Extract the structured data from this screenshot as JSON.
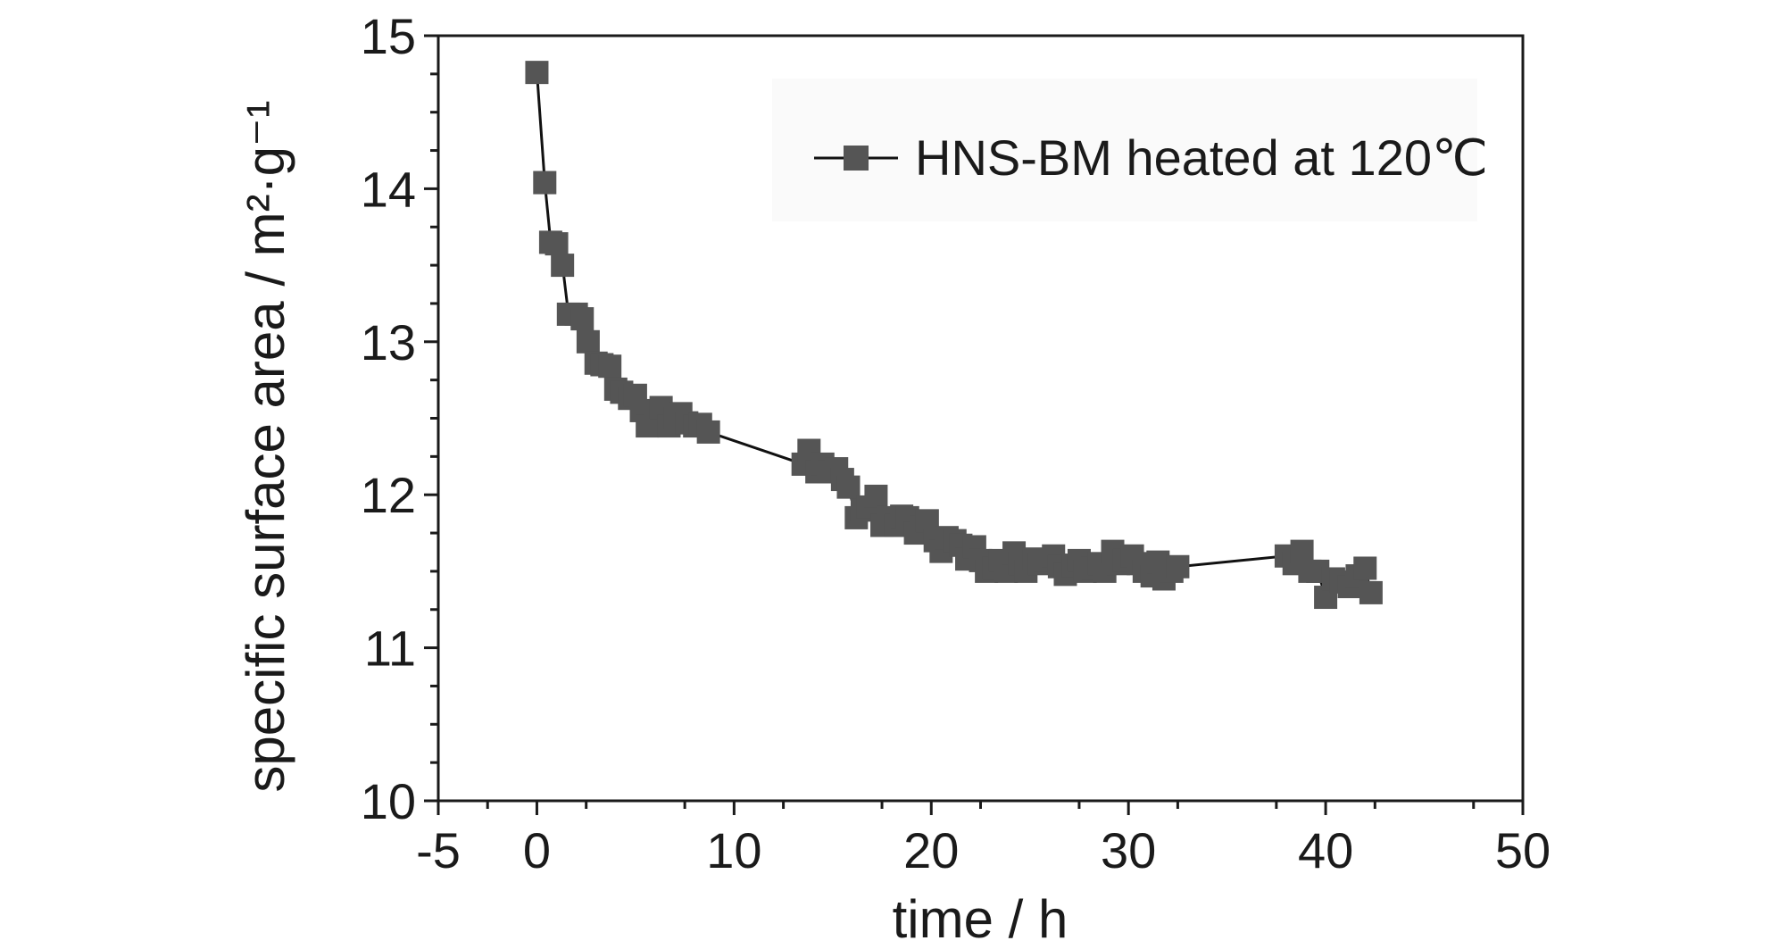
{
  "chart_data": {
    "type": "line",
    "title": "",
    "xlabel": "time / h",
    "ylabel": "specific surface area / m²·g⁻¹",
    "xlim": [
      -5,
      50
    ],
    "ylim": [
      10,
      15
    ],
    "x_ticks": [
      -5,
      0,
      10,
      20,
      30,
      40,
      50
    ],
    "x_tick_labels": [
      "-5",
      "0",
      "10",
      "20",
      "30",
      "40",
      "50"
    ],
    "y_ticks": [
      10,
      11,
      12,
      13,
      14,
      15
    ],
    "y_tick_labels": [
      "10",
      "11",
      "12",
      "13",
      "14",
      "15"
    ],
    "grid": false,
    "legend_position": "top-right",
    "marker": "square",
    "series_color": "#555555",
    "line_color": "#111111",
    "series": [
      {
        "name": "HNS-BM heated at 120℃",
        "x": [
          0.0,
          0.4,
          0.7,
          1.0,
          1.3,
          1.6,
          2.0,
          2.3,
          2.6,
          3.0,
          3.3,
          3.7,
          4.0,
          4.3,
          4.7,
          5.0,
          5.3,
          5.6,
          6.0,
          6.3,
          6.7,
          7.0,
          7.3,
          7.6,
          8.0,
          8.3,
          8.7,
          13.5,
          13.8,
          14.2,
          14.5,
          14.8,
          15.2,
          15.5,
          15.8,
          16.2,
          16.5,
          16.8,
          17.2,
          17.5,
          17.8,
          18.2,
          18.5,
          18.8,
          19.2,
          19.5,
          19.8,
          20.2,
          20.5,
          20.8,
          21.2,
          21.5,
          21.8,
          22.2,
          22.5,
          22.8,
          23.2,
          23.5,
          23.8,
          24.2,
          24.5,
          24.8,
          25.2,
          25.5,
          25.8,
          26.2,
          26.5,
          26.8,
          27.2,
          27.5,
          27.8,
          28.2,
          28.5,
          28.8,
          29.2,
          29.5,
          29.8,
          30.2,
          30.5,
          30.8,
          31.2,
          31.5,
          31.8,
          32.2,
          32.5,
          38.0,
          38.4,
          38.8,
          39.2,
          39.6,
          40.0,
          40.4,
          40.8,
          41.2,
          41.6,
          42.0,
          42.3
        ],
        "y": [
          14.76,
          14.04,
          13.65,
          13.64,
          13.5,
          13.18,
          13.18,
          13.15,
          13.0,
          12.86,
          12.85,
          12.84,
          12.69,
          12.67,
          12.63,
          12.65,
          12.55,
          12.45,
          12.5,
          12.57,
          12.45,
          12.5,
          12.53,
          12.47,
          12.45,
          12.46,
          12.41,
          12.2,
          12.29,
          12.15,
          12.2,
          12.15,
          12.17,
          12.1,
          12.05,
          11.85,
          11.9,
          11.92,
          11.99,
          11.8,
          11.85,
          11.8,
          11.86,
          11.85,
          11.75,
          11.79,
          11.83,
          11.7,
          11.63,
          11.72,
          11.7,
          11.67,
          11.58,
          11.66,
          11.57,
          11.5,
          11.52,
          11.57,
          11.5,
          11.62,
          11.55,
          11.5,
          11.58,
          11.55,
          11.57,
          11.6,
          11.53,
          11.48,
          11.54,
          11.57,
          11.5,
          11.52,
          11.55,
          11.5,
          11.63,
          11.55,
          11.57,
          11.6,
          11.55,
          11.5,
          11.47,
          11.56,
          11.45,
          11.5,
          11.53,
          11.6,
          11.55,
          11.63,
          11.5,
          11.5,
          11.33,
          11.45,
          11.43,
          11.4,
          11.47,
          11.52,
          11.36
        ]
      }
    ]
  }
}
